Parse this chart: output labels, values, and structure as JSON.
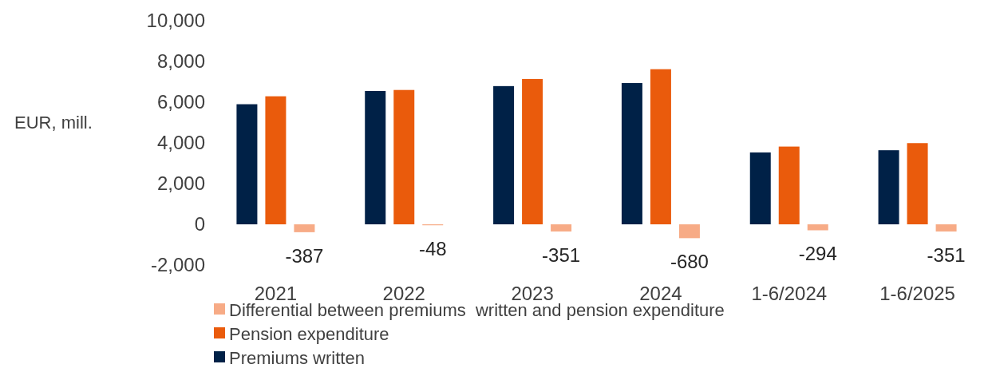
{
  "chart_data": {
    "type": "bar",
    "ylabel": "EUR, mill.",
    "categories": [
      "2021",
      "2022",
      "2023",
      "2024",
      "1-6/2024",
      "1-6/2025"
    ],
    "series": [
      {
        "name": "Premiums written",
        "color": "#002147",
        "values": [
          5900,
          6550,
          6790,
          6940,
          3530,
          3640
        ]
      },
      {
        "name": "Pension expenditure",
        "color": "#ea5b0c",
        "values": [
          6290,
          6600,
          7140,
          7620,
          3820,
          3990
        ]
      },
      {
        "name": "Differential between premiums  written and pension expenditure",
        "color": "#f7ab86",
        "values": [
          -387,
          -48,
          -351,
          -680,
          -294,
          -351
        ],
        "value_labels": [
          "-387",
          "-48",
          "-351",
          "-680",
          "-294",
          "-351"
        ]
      }
    ],
    "ylim": [
      -2000,
      10000
    ],
    "yticks": [
      {
        "value": -2000,
        "label": "-2,000"
      },
      {
        "value": 0,
        "label": "0"
      },
      {
        "value": 2000,
        "label": "2,000"
      },
      {
        "value": 4000,
        "label": "4,000"
      },
      {
        "value": 6000,
        "label": "6,000"
      },
      {
        "value": 8000,
        "label": "8,000"
      },
      {
        "value": 10000,
        "label": "10,000"
      }
    ],
    "legend": "bottom"
  }
}
